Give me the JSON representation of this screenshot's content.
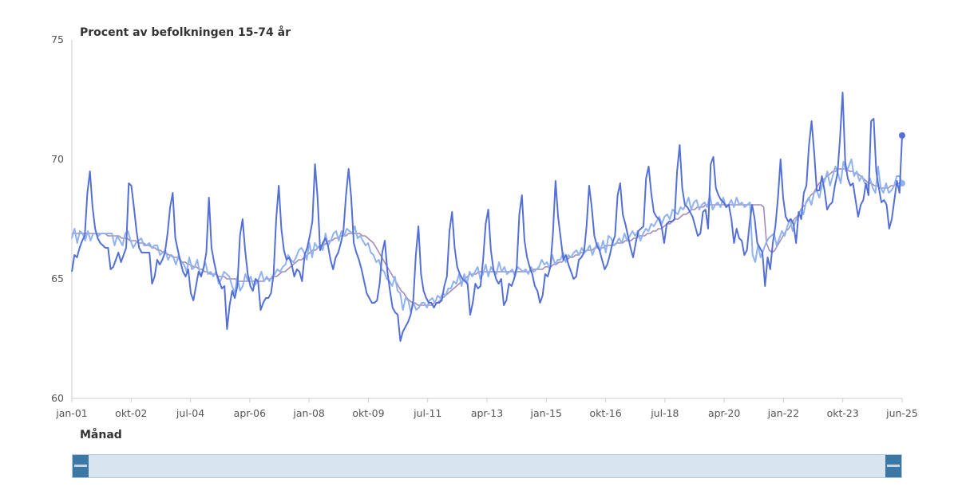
{
  "chart_data": {
    "type": "line",
    "ylabel": "Procent av befolkningen 15-74 år",
    "xlabel": "Månad",
    "ylim": [
      60,
      75
    ],
    "y_ticks": [
      "60",
      "65",
      "70",
      "75"
    ],
    "x_ticks": [
      "jan-01",
      "okt-02",
      "jul-04",
      "apr-06",
      "jan-08",
      "okt-09",
      "jul-11",
      "apr-13",
      "jan-15",
      "okt-16",
      "jul-18",
      "apr-20",
      "jan-22",
      "okt-23",
      "jun-25"
    ],
    "x_range": [
      "jan-01",
      "jun-25"
    ],
    "grid": false,
    "legend": "none",
    "series": [
      {
        "color": "#5470d6",
        "style": "unadjusted",
        "values": [
          65.3,
          66.0,
          65.9,
          66.3,
          66.6,
          66.8,
          68.6,
          69.5,
          68.0,
          67.1,
          66.7,
          66.5,
          66.4,
          66.3,
          66.3,
          65.4,
          65.5,
          65.8,
          66.1,
          65.7,
          66.0,
          66.3,
          69.0,
          68.9,
          68.0,
          67.0,
          66.3,
          66.1,
          66.1,
          66.1,
          66.1,
          64.8,
          65.1,
          65.8,
          65.6,
          65.8,
          66.1,
          66.9,
          68.0,
          68.6,
          66.7,
          66.2,
          65.7,
          65.3,
          65.1,
          65.4,
          64.4,
          64.1,
          64.7,
          65.3,
          65.1,
          65.5,
          66.1,
          68.4,
          66.3,
          65.7,
          65.2,
          64.9,
          64.6,
          64.7,
          62.9,
          63.9,
          64.5,
          64.2,
          64.7,
          66.8,
          67.5,
          66.2,
          65.2,
          64.7,
          64.5,
          65.0,
          64.9,
          63.7,
          64.0,
          64.2,
          64.2,
          64.4,
          65.2,
          67.5,
          68.9,
          67.1,
          66.2,
          65.8,
          65.9,
          65.6,
          65.1,
          65.4,
          65.3,
          64.9,
          66.0,
          66.3,
          66.8,
          67.4,
          69.8,
          68.4,
          66.2,
          66.5,
          66.7,
          66.4,
          65.8,
          65.4,
          65.9,
          66.1,
          66.5,
          67.0,
          68.5,
          69.6,
          68.4,
          66.5,
          66.1,
          65.8,
          65.4,
          64.9,
          64.4,
          64.2,
          64.0,
          64.0,
          64.1,
          64.8,
          66.1,
          66.6,
          65.3,
          64.5,
          63.8,
          63.6,
          63.5,
          62.4,
          62.8,
          63.0,
          63.2,
          63.5,
          64.1,
          66.0,
          67.2,
          65.2,
          64.5,
          64.2,
          64.0,
          64.0,
          63.8,
          64.0,
          64.0,
          64.1,
          64.7,
          65.1,
          67.0,
          67.8,
          66.3,
          65.5,
          65.2,
          65.0,
          64.9,
          64.8,
          63.5,
          64.0,
          64.8,
          64.6,
          64.7,
          65.8,
          67.3,
          67.9,
          66.2,
          65.4,
          65.0,
          64.8,
          65.0,
          63.9,
          64.1,
          64.8,
          64.7,
          65.0,
          65.5,
          67.7,
          68.5,
          66.6,
          65.9,
          65.5,
          65.2,
          64.7,
          64.5,
          64.0,
          64.3,
          65.2,
          65.1,
          65.5,
          66.9,
          69.1,
          67.6,
          66.7,
          65.8,
          66.0,
          65.6,
          65.3,
          65.0,
          65.1,
          65.8,
          65.9,
          66.1,
          67.2,
          68.9,
          68.0,
          66.8,
          66.4,
          66.2,
          65.8,
          65.4,
          65.6,
          66.0,
          66.5,
          66.8,
          68.5,
          69.0,
          67.7,
          67.3,
          66.8,
          66.3,
          65.9,
          66.5,
          67.0,
          67.1,
          67.2,
          69.2,
          69.7,
          68.6,
          67.8,
          67.6,
          67.5,
          67.2,
          66.5,
          67.3,
          67.4,
          67.4,
          67.5,
          69.5,
          70.6,
          68.8,
          68.1,
          68.0,
          67.8,
          67.6,
          67.2,
          66.8,
          66.9,
          67.8,
          67.9,
          67.1,
          69.8,
          70.1,
          68.8,
          68.5,
          68.3,
          68.2,
          68.0,
          68.1,
          67.5,
          66.5,
          67.1,
          66.7,
          66.6,
          66.0,
          66.2,
          67.3,
          68.1,
          67.5,
          66.5,
          66.3,
          66.1,
          64.7,
          65.9,
          65.4,
          66.5,
          67.2,
          68.4,
          70.0,
          68.4,
          67.6,
          67.4,
          67.5,
          67.3,
          66.5,
          67.8,
          67.5,
          68.6,
          68.9,
          70.6,
          71.6,
          70.3,
          68.7,
          68.7,
          69.3,
          68.7,
          67.9,
          68.1,
          68.2,
          68.9,
          69.4,
          70.9,
          72.8,
          69.9,
          69.2,
          68.9,
          69.0,
          68.3,
          67.6,
          68.1,
          68.3,
          69.0,
          68.5,
          71.6,
          71.7,
          69.5,
          68.8,
          68.2,
          68.3,
          68.1,
          67.1,
          67.5,
          68.3,
          69.1,
          68.6,
          71.0
        ]
      },
      {
        "color": "#8fb2f0",
        "style": "seasonally-adjusted",
        "values": [
          66.7,
          67.1,
          66.5,
          67.0,
          66.9,
          66.6,
          67.0,
          66.6,
          66.9,
          66.9,
          66.8,
          66.9,
          66.9,
          66.9,
          66.9,
          66.9,
          66.4,
          66.8,
          66.6,
          66.4,
          66.9,
          67.0,
          66.6,
          66.3,
          66.5,
          66.6,
          66.7,
          66.4,
          66.4,
          66.5,
          66.3,
          66.4,
          66.4,
          66.0,
          66.1,
          66.2,
          65.8,
          66.0,
          65.9,
          65.6,
          66.0,
          65.7,
          65.6,
          65.3,
          65.9,
          65.4,
          65.5,
          65.8,
          65.2,
          65.3,
          65.7,
          65.2,
          65.3,
          65.1,
          65.3,
          64.8,
          65.0,
          65.3,
          65.2,
          65.1,
          64.7,
          64.4,
          65.1,
          64.5,
          64.7,
          65.2,
          64.9,
          65.1,
          64.7,
          64.8,
          65.0,
          65.3,
          64.9,
          65.1,
          64.9,
          65.1,
          65.2,
          65.4,
          65.3,
          65.5,
          65.6,
          66.0,
          65.8,
          65.7,
          65.9,
          66.2,
          66.3,
          66.1,
          65.8,
          66.5,
          65.9,
          66.5,
          66.3,
          66.4,
          66.2,
          66.9,
          66.4,
          66.6,
          66.9,
          67.0,
          66.6,
          67.0,
          66.8,
          67.1,
          67.0,
          66.9,
          67.2,
          66.7,
          66.8,
          66.6,
          66.4,
          66.5,
          66.1,
          66.0,
          65.7,
          65.8,
          65.4,
          65.3,
          65.0,
          64.9,
          64.7,
          65.1,
          64.5,
          64.4,
          63.7,
          64.2,
          64.1,
          63.6,
          64.0,
          63.7,
          63.8,
          64.0,
          64.0,
          63.8,
          64.1,
          64.2,
          64.0,
          64.3,
          64.2,
          64.4,
          64.3,
          64.6,
          64.6,
          64.9,
          64.8,
          65.2,
          64.7,
          65.2,
          64.8,
          65.3,
          65.1,
          65.3,
          65.5,
          65.0,
          65.2,
          65.6,
          65.1,
          65.5,
          65.3,
          65.2,
          65.7,
          65.3,
          65.5,
          65.2,
          65.3,
          65.4,
          65.1,
          65.5,
          65.4,
          65.3,
          65.4,
          65.2,
          65.5,
          65.3,
          65.4,
          65.5,
          65.8,
          65.6,
          65.7,
          65.4,
          66.0,
          65.6,
          65.8,
          65.8,
          66.1,
          65.7,
          66.0,
          65.9,
          66.1,
          66.2,
          66.0,
          66.3,
          66.1,
          66.2,
          66.4,
          66.0,
          66.3,
          66.5,
          66.2,
          66.6,
          66.1,
          66.8,
          66.7,
          66.4,
          66.5,
          66.7,
          66.5,
          66.9,
          66.6,
          66.8,
          67.0,
          66.8,
          67.0,
          66.6,
          66.9,
          67.1,
          67.0,
          67.3,
          67.2,
          67.4,
          67.6,
          67.3,
          67.6,
          67.7,
          67.5,
          67.9,
          67.8,
          67.7,
          68.0,
          67.9,
          68.1,
          68.4,
          67.9,
          68.2,
          68.3,
          67.9,
          68.1,
          68.2,
          68.0,
          68.5,
          67.9,
          68.1,
          68.2,
          68.0,
          68.4,
          68.0,
          68.1,
          68.3,
          68.0,
          68.4,
          68.1,
          68.2,
          68.0,
          68.1,
          68.2,
          66.0,
          65.7,
          66.4,
          65.9,
          66.2,
          66.5,
          66.7,
          66.8,
          66.9,
          66.4,
          66.7,
          67.0,
          66.8,
          67.2,
          67.5,
          67.0,
          67.4,
          67.6,
          67.9,
          67.7,
          68.2,
          68.4,
          68.1,
          68.6,
          68.7,
          68.4,
          68.9,
          69.1,
          69.5,
          68.9,
          69.3,
          69.7,
          69.4,
          69.0,
          69.9,
          69.5,
          69.7,
          70.0,
          69.3,
          69.5,
          69.1,
          69.3,
          69.0,
          68.9,
          69.2,
          68.8,
          68.6,
          69.7,
          68.8,
          68.6,
          69.0,
          68.6,
          68.7,
          68.9,
          69.3,
          69.3,
          69.0
        ]
      },
      {
        "color": "#a58ab5",
        "style": "trend",
        "values": [
          66.9,
          66.9,
          66.9,
          66.9,
          66.9,
          66.9,
          66.9,
          66.9,
          66.9,
          66.9,
          66.9,
          66.9,
          66.9,
          66.8,
          66.8,
          66.8,
          66.8,
          66.8,
          66.7,
          66.7,
          66.7,
          66.6,
          66.6,
          66.6,
          66.5,
          66.5,
          66.5,
          66.4,
          66.4,
          66.3,
          66.3,
          66.2,
          66.2,
          66.1,
          66.1,
          66.0,
          66.0,
          65.9,
          65.9,
          65.8,
          65.7,
          65.7,
          65.6,
          65.6,
          65.5,
          65.5,
          65.4,
          65.4,
          65.3,
          65.3,
          65.2,
          65.2,
          65.2,
          65.1,
          65.1,
          65.1,
          65.0,
          65.0,
          65.0,
          65.0,
          64.9,
          64.9,
          64.9,
          64.9,
          64.9,
          64.9,
          64.9,
          64.9,
          64.9,
          64.9,
          65.0,
          65.0,
          65.0,
          65.1,
          65.1,
          65.2,
          65.3,
          65.3,
          65.4,
          65.5,
          65.6,
          65.7,
          65.8,
          65.8,
          65.9,
          66.0,
          66.1,
          66.2,
          66.2,
          66.3,
          66.4,
          66.4,
          66.5,
          66.6,
          66.6,
          66.7,
          66.7,
          66.8,
          66.8,
          66.8,
          66.9,
          66.9,
          66.9,
          66.9,
          66.9,
          66.8,
          66.8,
          66.7,
          66.6,
          66.5,
          66.3,
          66.1,
          65.9,
          65.7,
          65.5,
          65.3,
          65.1,
          64.9,
          64.7,
          64.5,
          64.4,
          64.2,
          64.1,
          64.0,
          64.0,
          63.9,
          63.9,
          63.9,
          63.9,
          63.9,
          63.9,
          64.0,
          64.0,
          64.1,
          64.2,
          64.3,
          64.4,
          64.5,
          64.6,
          64.7,
          64.8,
          64.9,
          65.0,
          65.1,
          65.2,
          65.2,
          65.2,
          65.3,
          65.3,
          65.3,
          65.3,
          65.3,
          65.3,
          65.3,
          65.3,
          65.3,
          65.3,
          65.3,
          65.3,
          65.3,
          65.3,
          65.3,
          65.3,
          65.3,
          65.3,
          65.3,
          65.3,
          65.4,
          65.4,
          65.4,
          65.4,
          65.5,
          65.5,
          65.5,
          65.6,
          65.6,
          65.7,
          65.7,
          65.8,
          65.8,
          65.9,
          65.9,
          66.0,
          66.0,
          66.1,
          66.1,
          66.2,
          66.2,
          66.2,
          66.3,
          66.3,
          66.3,
          66.3,
          66.4,
          66.4,
          66.4,
          66.4,
          66.5,
          66.5,
          66.5,
          66.6,
          66.6,
          66.6,
          66.7,
          66.7,
          66.8,
          66.8,
          66.8,
          66.9,
          66.9,
          67.0,
          67.0,
          67.1,
          67.1,
          67.2,
          67.3,
          67.3,
          67.4,
          67.5,
          67.5,
          67.6,
          67.7,
          67.7,
          67.8,
          67.9,
          67.9,
          68.0,
          68.0,
          68.0,
          68.1,
          68.1,
          68.1,
          68.1,
          68.1,
          68.1,
          68.1,
          68.1,
          68.1,
          68.1,
          68.1,
          68.1,
          68.1,
          68.1,
          68.1,
          68.1,
          68.1,
          68.1,
          68.1,
          68.1,
          68.1,
          68.0,
          66.5,
          66.2,
          66.1,
          66.2,
          66.4,
          66.6,
          66.8,
          67.0,
          67.1,
          67.3,
          67.5,
          67.6,
          67.8,
          68.0,
          68.1,
          68.3,
          68.5,
          68.6,
          68.8,
          69.0,
          69.1,
          69.2,
          69.3,
          69.4,
          69.5,
          69.5,
          69.6,
          69.6,
          69.6,
          69.6,
          69.5,
          69.5,
          69.4,
          69.4,
          69.3,
          69.2,
          69.1,
          69.0,
          69.0,
          68.9,
          68.9,
          68.8,
          68.8,
          68.8,
          68.8,
          68.9,
          68.9,
          69.0,
          69.0,
          69.1
        ]
      }
    ]
  }
}
